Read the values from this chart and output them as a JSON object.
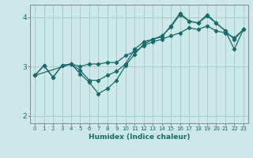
{
  "xlabel": "Humidex (Indice chaleur)",
  "bg_color": "#cce8e8",
  "grid_color": "#aacccc",
  "line_color": "#1a6b6b",
  "xlim": [
    -0.5,
    23.5
  ],
  "ylim": [
    1.85,
    4.25
  ],
  "yticks": [
    2,
    3,
    4
  ],
  "xticks": [
    0,
    1,
    2,
    3,
    4,
    5,
    6,
    7,
    8,
    9,
    10,
    11,
    12,
    13,
    14,
    15,
    16,
    17,
    18,
    19,
    20,
    21,
    22,
    23
  ],
  "lines": [
    {
      "x": [
        0,
        1,
        2,
        3,
        4,
        5,
        6,
        7,
        8,
        9,
        10,
        11,
        12,
        13,
        14,
        15,
        16,
        17,
        18,
        19,
        20,
        21,
        22,
        23
      ],
      "y": [
        2.82,
        3.02,
        2.78,
        3.02,
        3.05,
        3.0,
        3.05,
        3.05,
        3.08,
        3.08,
        3.22,
        3.3,
        3.42,
        3.5,
        3.55,
        3.62,
        3.68,
        3.78,
        3.75,
        3.82,
        3.72,
        3.68,
        3.58,
        3.75
      ]
    },
    {
      "x": [
        0,
        1,
        2,
        3,
        4,
        5,
        6,
        7,
        8,
        9,
        10,
        11,
        12,
        13,
        14,
        15,
        16,
        17,
        18,
        19,
        20,
        21,
        22,
        23
      ],
      "y": [
        2.82,
        3.02,
        2.78,
        3.02,
        3.05,
        2.92,
        2.72,
        2.72,
        2.82,
        2.9,
        3.05,
        3.35,
        3.5,
        3.55,
        3.62,
        3.8,
        4.05,
        3.92,
        3.88,
        4.02,
        3.88,
        3.72,
        3.55,
        3.75
      ]
    },
    {
      "x": [
        0,
        4,
        5,
        6,
        7,
        8,
        9,
        10,
        11,
        12,
        13,
        14,
        15,
        16,
        17,
        18,
        19,
        20,
        21,
        22,
        23
      ],
      "y": [
        2.82,
        3.05,
        2.85,
        2.68,
        2.45,
        2.55,
        2.72,
        3.02,
        3.25,
        3.45,
        3.55,
        3.6,
        3.82,
        4.08,
        3.92,
        3.88,
        4.05,
        3.88,
        3.72,
        3.35,
        3.75
      ]
    }
  ]
}
